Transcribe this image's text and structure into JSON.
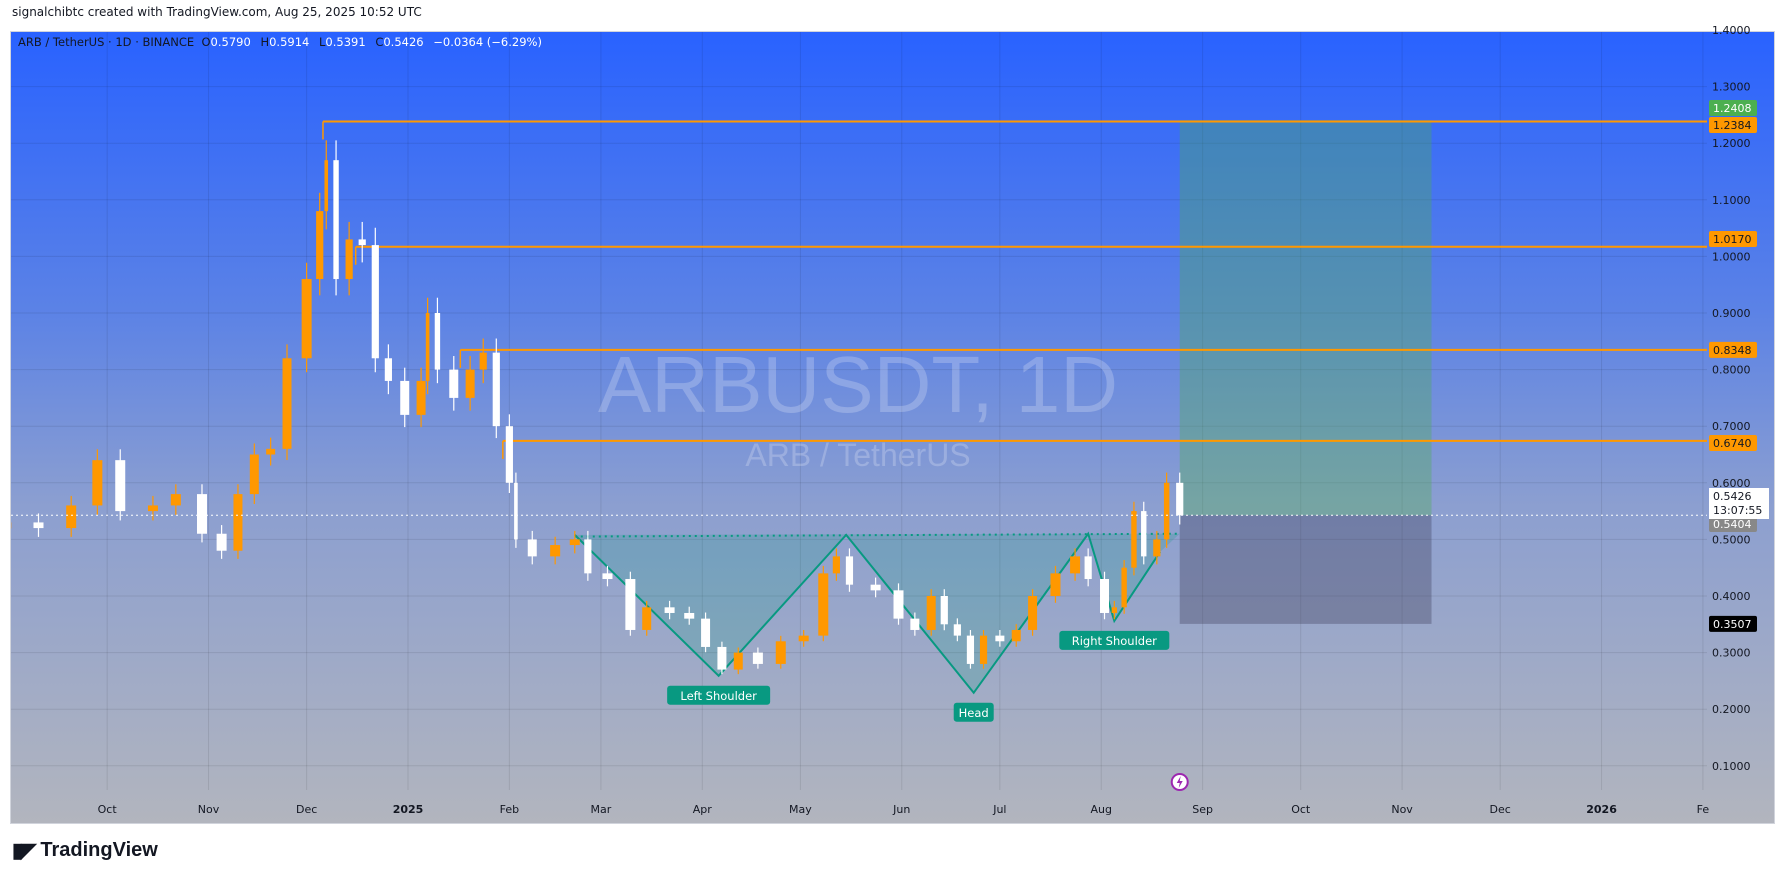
{
  "credit": "signalchibtc created with TradingView.com, Aug 25, 2025 10:52 UTC",
  "legend": {
    "symbol": "ARB / TetherUS · 1D · BINANCE",
    "o_label": "O",
    "o": "0.5790",
    "h_label": "H",
    "h": "0.5914",
    "l_label": "L",
    "l": "0.5391",
    "c_label": "C",
    "c": "0.5426",
    "change": "−0.0364 (−6.29%)"
  },
  "watermark": {
    "title": "ARBUSDT, 1D",
    "subtitle": "ARB / TetherUS"
  },
  "footer": {
    "brand": "TradingView",
    "logo": "TV"
  },
  "colors": {
    "up": "#ff9800",
    "down": "#ffffff",
    "level": "#ff9800",
    "pattern": "#089981",
    "profit": "#4caf50",
    "stop": "#131722"
  },
  "chart_data": {
    "type": "candlestick",
    "symbol": "ARBUSDT",
    "interval": "1D",
    "ylim": [
      0.05,
      1.42
    ],
    "y_ticks": [
      "1.4000",
      "1.3000",
      "1.2000",
      "1.1000",
      "1.0000",
      "0.9000",
      "0.8000",
      "0.7000",
      "0.6000",
      "0.5000",
      "0.4000",
      "0.3000",
      "0.2000",
      "0.1000"
    ],
    "x_ticks": [
      {
        "label": "Oct",
        "date": "2024-10-01"
      },
      {
        "label": "Nov",
        "date": "2024-11-01"
      },
      {
        "label": "Dec",
        "date": "2024-12-01"
      },
      {
        "label": "2025",
        "date": "2025-01-01"
      },
      {
        "label": "Feb",
        "date": "2025-02-01"
      },
      {
        "label": "Mar",
        "date": "2025-03-01"
      },
      {
        "label": "Apr",
        "date": "2025-04-01"
      },
      {
        "label": "May",
        "date": "2025-05-01"
      },
      {
        "label": "Jun",
        "date": "2025-06-01"
      },
      {
        "label": "Jul",
        "date": "2025-07-01"
      },
      {
        "label": "Aug",
        "date": "2025-08-01"
      },
      {
        "label": "Sep",
        "date": "2025-09-01"
      },
      {
        "label": "Oct",
        "date": "2025-10-01"
      },
      {
        "label": "Nov",
        "date": "2025-11-01"
      },
      {
        "label": "Dec",
        "date": "2025-12-01"
      },
      {
        "label": "2026",
        "date": "2026-01-01"
      },
      {
        "label": "Fe",
        "date": "2026-02-01"
      }
    ],
    "grid": true,
    "closes": [
      [
        "2024-09-01",
        0.53
      ],
      [
        "2024-09-10",
        0.52
      ],
      [
        "2024-09-20",
        0.56
      ],
      [
        "2024-09-28",
        0.64
      ],
      [
        "2024-10-05",
        0.55
      ],
      [
        "2024-10-15",
        0.56
      ],
      [
        "2024-10-22",
        0.58
      ],
      [
        "2024-10-30",
        0.51
      ],
      [
        "2024-11-05",
        0.48
      ],
      [
        "2024-11-10",
        0.58
      ],
      [
        "2024-11-15",
        0.65
      ],
      [
        "2024-11-20",
        0.66
      ],
      [
        "2024-11-25",
        0.82
      ],
      [
        "2024-12-01",
        0.96
      ],
      [
        "2024-12-05",
        1.08
      ],
      [
        "2024-12-07",
        1.17
      ],
      [
        "2024-12-10",
        0.96
      ],
      [
        "2024-12-14",
        1.03
      ],
      [
        "2024-12-18",
        1.02
      ],
      [
        "2024-12-22",
        0.82
      ],
      [
        "2024-12-26",
        0.78
      ],
      [
        "2024-12-31",
        0.72
      ],
      [
        "2025-01-05",
        0.78
      ],
      [
        "2025-01-07",
        0.9
      ],
      [
        "2025-01-10",
        0.8
      ],
      [
        "2025-01-15",
        0.75
      ],
      [
        "2025-01-20",
        0.8
      ],
      [
        "2025-01-24",
        0.83
      ],
      [
        "2025-01-28",
        0.7
      ],
      [
        "2025-02-01",
        0.6
      ],
      [
        "2025-02-03",
        0.5
      ],
      [
        "2025-02-08",
        0.47
      ],
      [
        "2025-02-15",
        0.49
      ],
      [
        "2025-02-21",
        0.5
      ],
      [
        "2025-02-25",
        0.44
      ],
      [
        "2025-03-03",
        0.43
      ],
      [
        "2025-03-10",
        0.34
      ],
      [
        "2025-03-15",
        0.38
      ],
      [
        "2025-03-22",
        0.37
      ],
      [
        "2025-03-28",
        0.36
      ],
      [
        "2025-04-02",
        0.31
      ],
      [
        "2025-04-07",
        0.27
      ],
      [
        "2025-04-12",
        0.3
      ],
      [
        "2025-04-18",
        0.28
      ],
      [
        "2025-04-25",
        0.32
      ],
      [
        "2025-05-02",
        0.33
      ],
      [
        "2025-05-08",
        0.44
      ],
      [
        "2025-05-12",
        0.47
      ],
      [
        "2025-05-16",
        0.42
      ],
      [
        "2025-05-24",
        0.41
      ],
      [
        "2025-05-31",
        0.36
      ],
      [
        "2025-06-05",
        0.34
      ],
      [
        "2025-06-10",
        0.4
      ],
      [
        "2025-06-14",
        0.35
      ],
      [
        "2025-06-18",
        0.33
      ],
      [
        "2025-06-22",
        0.28
      ],
      [
        "2025-06-26",
        0.33
      ],
      [
        "2025-07-01",
        0.32
      ],
      [
        "2025-07-06",
        0.34
      ],
      [
        "2025-07-11",
        0.4
      ],
      [
        "2025-07-18",
        0.44
      ],
      [
        "2025-07-24",
        0.47
      ],
      [
        "2025-07-28",
        0.43
      ],
      [
        "2025-08-02",
        0.37
      ],
      [
        "2025-08-05",
        0.38
      ],
      [
        "2025-08-08",
        0.45
      ],
      [
        "2025-08-11",
        0.55
      ],
      [
        "2025-08-14",
        0.47
      ],
      [
        "2025-08-18",
        0.5
      ],
      [
        "2025-08-21",
        0.6
      ],
      [
        "2025-08-25",
        0.5426
      ]
    ],
    "horizontal_levels": [
      {
        "price": 1.2384,
        "from": "2024-12-06",
        "label": "1.2384"
      },
      {
        "price": 1.017,
        "from": "2024-12-16",
        "label": "1.0170"
      },
      {
        "price": 0.8348,
        "from": "2025-01-17",
        "label": "0.8348"
      },
      {
        "price": 0.674,
        "from": "2025-01-30",
        "label": "0.6740"
      }
    ],
    "pattern": {
      "points": [
        [
          "2025-02-21",
          0.508
        ],
        [
          "2025-04-06",
          0.259
        ],
        [
          "2025-05-15",
          0.508
        ],
        [
          "2025-06-23",
          0.229
        ],
        [
          "2025-07-28",
          0.51
        ],
        [
          "2025-08-05",
          0.356
        ],
        [
          "2025-08-19",
          0.478
        ]
      ],
      "neckline": [
        [
          "2025-02-21",
          0.505
        ],
        [
          "2025-08-25",
          0.51
        ]
      ],
      "labels": [
        {
          "text": "Left Shoulder",
          "date": "2025-04-06",
          "price": 0.259
        },
        {
          "text": "Head",
          "date": "2025-06-23",
          "price": 0.229
        },
        {
          "text": "Right Shoulder",
          "date": "2025-08-05",
          "price": 0.356
        }
      ]
    },
    "position": {
      "type": "long",
      "from": "2025-08-25",
      "to": "2025-11-10",
      "target": 1.2408,
      "entry": 0.5426,
      "stop": 0.3507
    },
    "price_labels": [
      {
        "text": "1.2408",
        "price": 1.2408,
        "bg": "#4caf50",
        "fg": "#ffffff"
      },
      {
        "text": "1.2384",
        "price": 1.2384,
        "bg": "#ff9800",
        "fg": "#131722"
      },
      {
        "text": "1.0170",
        "price": 1.017,
        "bg": "#ff9800",
        "fg": "#131722"
      },
      {
        "text": "0.8348",
        "price": 0.8348,
        "bg": "#ff9800",
        "fg": "#131722"
      },
      {
        "text": "0.6740",
        "price": 0.674,
        "bg": "#ff9800",
        "fg": "#131722"
      },
      {
        "text": "0.5404",
        "price": 0.5404,
        "bg": "#888888",
        "fg": "#ffffff"
      },
      {
        "text": "0.3507",
        "price": 0.3507,
        "bg": "#000000",
        "fg": "#ffffff"
      }
    ],
    "last_price": {
      "price": 0.5426,
      "text": "0.5426",
      "countdown": "13:07:55"
    },
    "event_icon": {
      "name": "lightning-icon",
      "date": "2025-08-25"
    }
  }
}
